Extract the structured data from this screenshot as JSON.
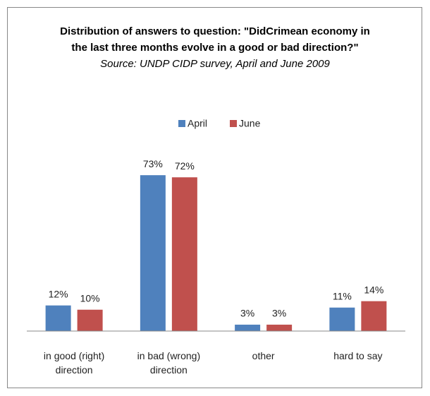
{
  "chart_data": {
    "type": "bar",
    "title": "Distribution of answers to question: \"DidCrimean economy in the last three months evolve in a good or bad direction?\"",
    "subtitle": "Source: UNDP CIDP survey, April and June 2009",
    "categories": [
      "in good (right) direction",
      "in bad (wrong) direction",
      "other",
      "hard to say"
    ],
    "series": [
      {
        "name": "April",
        "color": "#4f81bd",
        "values": [
          12,
          73,
          3,
          11
        ],
        "value_labels": [
          "12%",
          "73%",
          "3%",
          "11%"
        ]
      },
      {
        "name": "June",
        "color": "#c0504d",
        "values": [
          10,
          72,
          3,
          14
        ],
        "value_labels": [
          "10%",
          "72%",
          "3%",
          "14%"
        ]
      }
    ],
    "ylim": [
      0,
      80
    ]
  }
}
